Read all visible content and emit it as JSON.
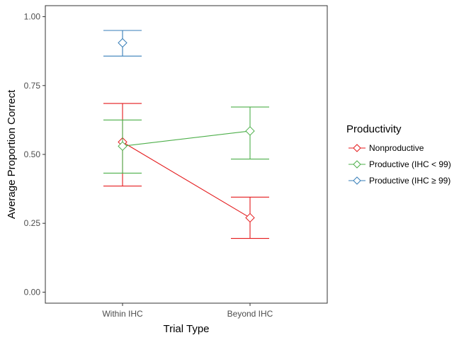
{
  "chart_data": {
    "type": "line",
    "xlabel": "Trial Type",
    "ylabel": "Average Proportion Correct",
    "categories": [
      "Within IHC",
      "Beyond IHC"
    ],
    "ylim": [
      -0.04,
      1.04
    ],
    "yticks": [
      0.0,
      0.25,
      0.5,
      0.75,
      1.0
    ],
    "ytick_labels": [
      "0.00",
      "0.25",
      "0.50",
      "0.75",
      "1.00"
    ],
    "grid": false,
    "legend": {
      "title": "Productivity",
      "position": "right"
    },
    "series": [
      {
        "name": "Nonproductive",
        "color": "#e41a1c",
        "points": [
          {
            "x": "Within IHC",
            "y": 0.545,
            "lower": 0.385,
            "upper": 0.685
          },
          {
            "x": "Beyond IHC",
            "y": 0.27,
            "lower": 0.195,
            "upper": 0.345
          }
        ]
      },
      {
        "name": "Productive (IHC < 99)",
        "color": "#4daf4a",
        "points": [
          {
            "x": "Within IHC",
            "y": 0.53,
            "lower": 0.432,
            "upper": 0.625
          },
          {
            "x": "Beyond IHC",
            "y": 0.585,
            "lower": 0.483,
            "upper": 0.672
          }
        ]
      },
      {
        "name": "Productive (IHC ≥ 99)",
        "color": "#377eb8",
        "points": [
          {
            "x": "Within IHC",
            "y": 0.905,
            "lower": 0.857,
            "upper": 0.95
          }
        ]
      }
    ]
  }
}
